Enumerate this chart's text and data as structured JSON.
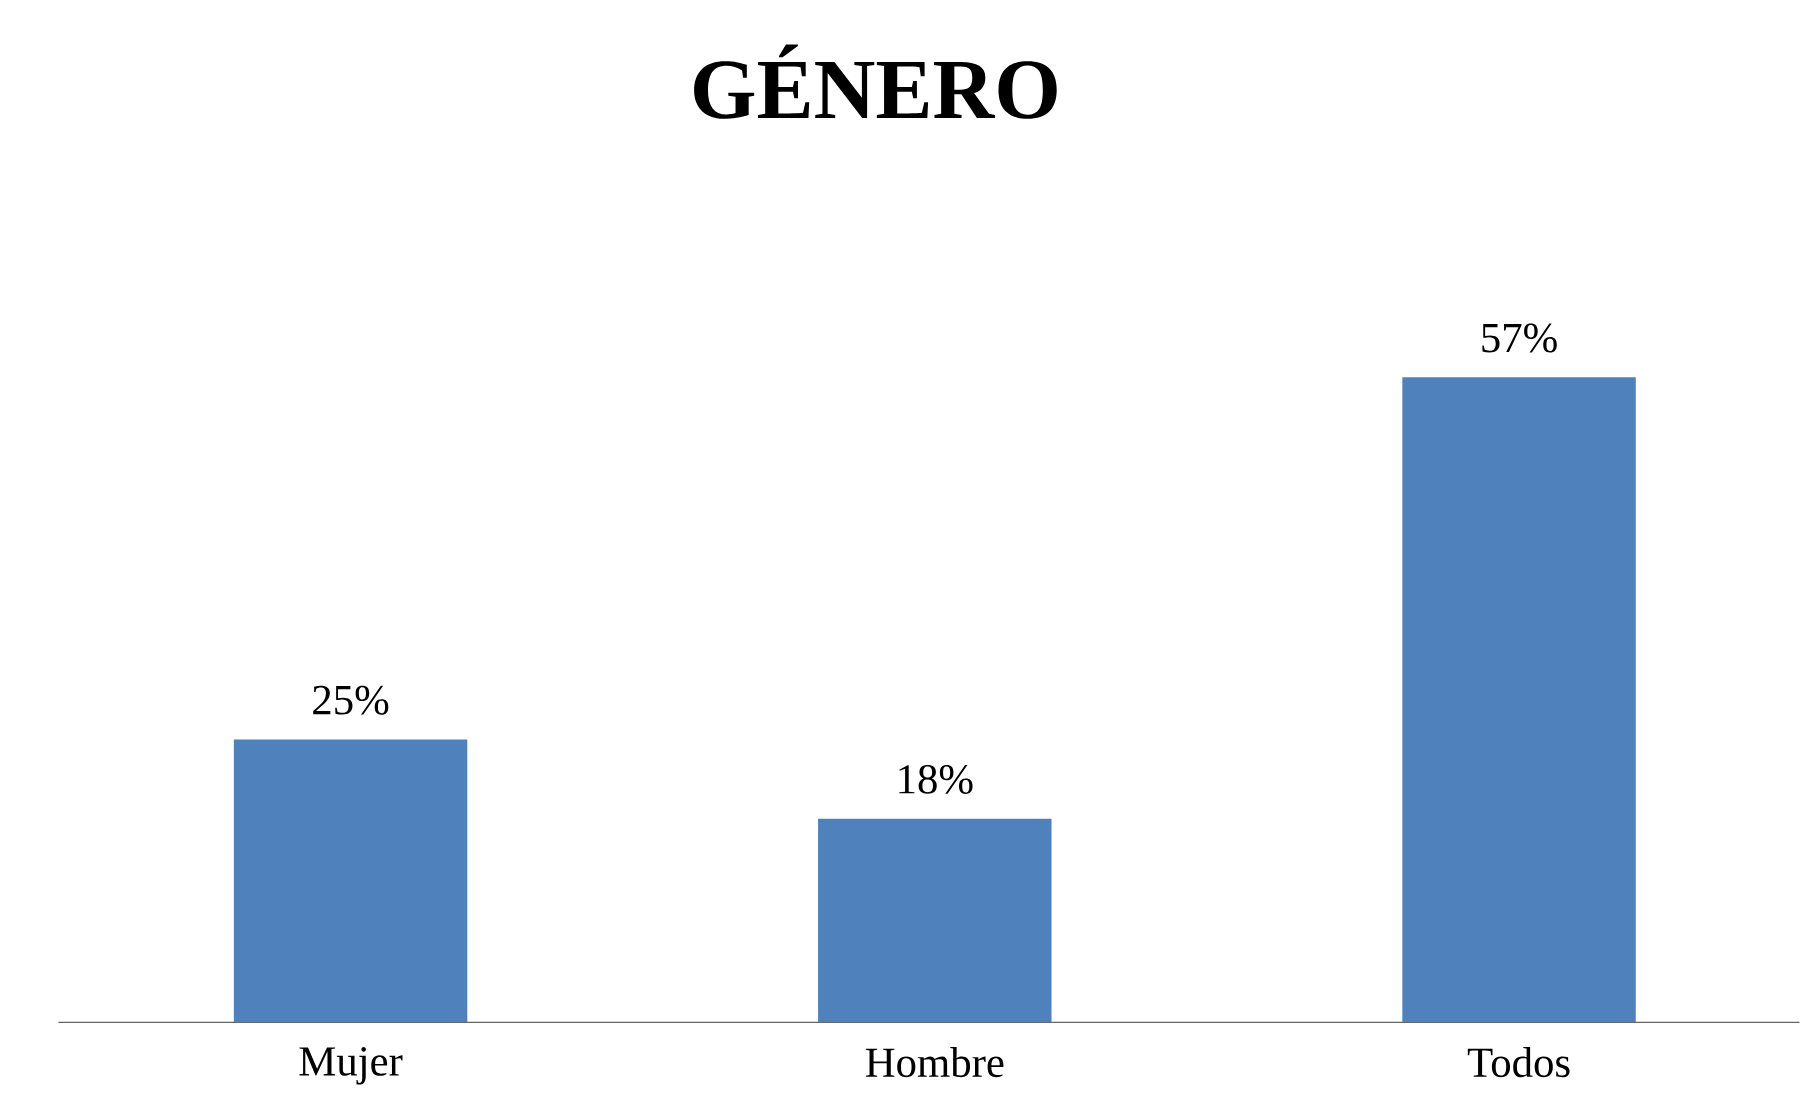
{
  "chart_data": {
    "type": "bar",
    "title": "GÉNERO",
    "categories": [
      "Mujer",
      "Hombre",
      "Todos"
    ],
    "values": [
      25,
      18,
      57
    ],
    "value_labels": [
      "25%",
      "18%",
      "57%"
    ],
    "color": "#4f81bd",
    "grid": false
  }
}
